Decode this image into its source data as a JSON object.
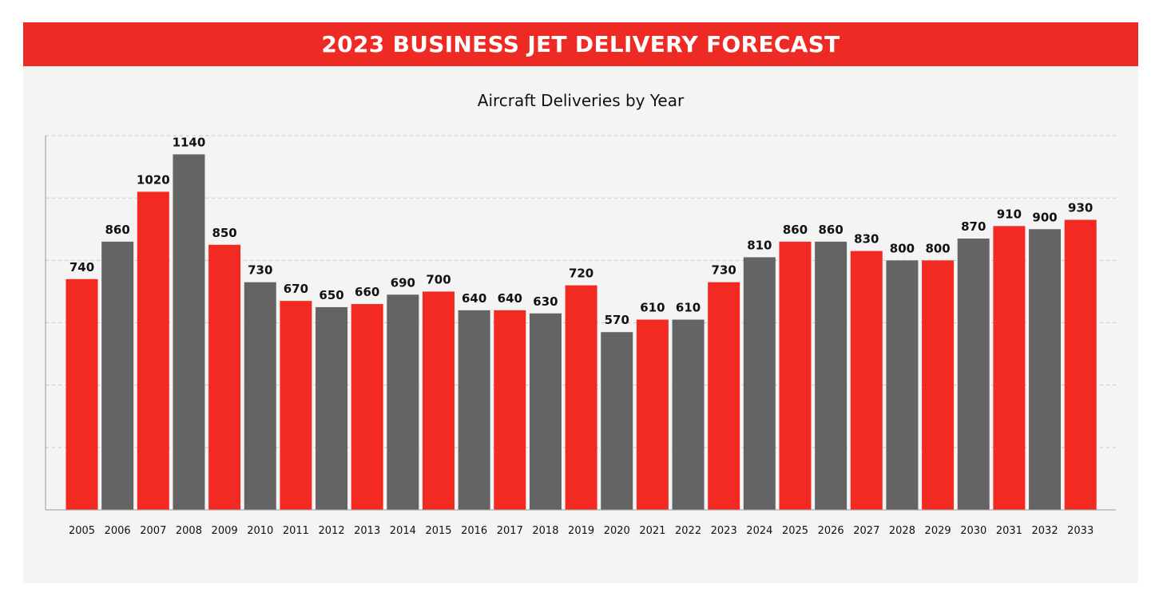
{
  "banner": {
    "title": "2023 BUSINESS JET DELIVERY FORECAST"
  },
  "colors": {
    "banner": "#ee2a24",
    "panel_background": "#f4f4f4",
    "bar_red": "#f22a22",
    "bar_gray": "#646464"
  },
  "chart_data": {
    "type": "bar",
    "title": "Aircraft Deliveries by Year",
    "xlabel": "",
    "ylabel": "",
    "ylim": [
      0,
      1200
    ],
    "grid": true,
    "categories": [
      "2005",
      "2006",
      "2007",
      "2008",
      "2009",
      "2010",
      "2011",
      "2012",
      "2013",
      "2014",
      "2015",
      "2016",
      "2017",
      "2018",
      "2019",
      "2020",
      "2021",
      "2022",
      "2023",
      "2024",
      "2025",
      "2026",
      "2027",
      "2028",
      "2029",
      "2030",
      "2031",
      "2032",
      "2033"
    ],
    "values": [
      740,
      860,
      1020,
      1140,
      850,
      730,
      670,
      650,
      660,
      690,
      700,
      640,
      640,
      630,
      720,
      570,
      610,
      610,
      730,
      810,
      860,
      860,
      830,
      800,
      800,
      870,
      910,
      900,
      930
    ],
    "bar_colors": [
      "red",
      "gray",
      "red",
      "gray",
      "red",
      "gray",
      "red",
      "gray",
      "red",
      "gray",
      "red",
      "gray",
      "red",
      "gray",
      "red",
      "gray",
      "red",
      "gray",
      "red",
      "gray",
      "red",
      "gray",
      "red",
      "gray",
      "red",
      "gray",
      "red",
      "gray",
      "red"
    ],
    "data_labels": [
      "740",
      "860",
      "1020",
      "1140",
      "850",
      "730",
      "670",
      "650",
      "660",
      "690",
      "700",
      "640",
      "640",
      "630",
      "720",
      "570",
      "610",
      "610",
      "730",
      "810",
      "860",
      "860",
      "830",
      "800",
      "800",
      "870",
      "910",
      "900",
      "930"
    ]
  }
}
